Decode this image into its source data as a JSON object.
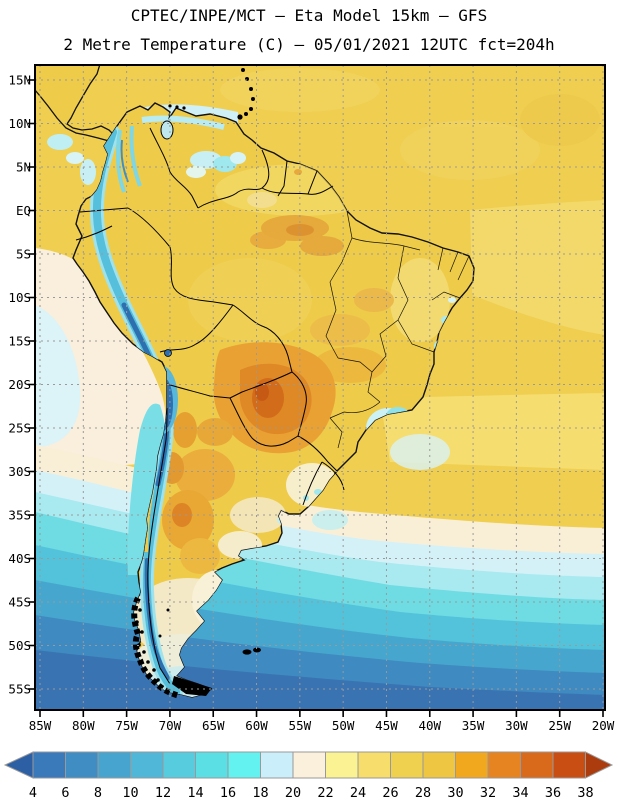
{
  "header": {
    "title_line1": "CPTEC/INPE/MCT –  Eta Model 15km – GFS",
    "title_line2": "2 Metre Temperature (C) – 05/01/2021 12UTC fct=204h"
  },
  "map": {
    "lat_labels": [
      "15N",
      "10N",
      "5N",
      "EQ",
      "5S",
      "10S",
      "15S",
      "20S",
      "25S",
      "30S",
      "35S",
      "40S",
      "45S",
      "50S",
      "55S"
    ],
    "lon_labels": [
      "85W",
      "80W",
      "75W",
      "70W",
      "65W",
      "60W",
      "55W",
      "50W",
      "45W",
      "40W",
      "35W",
      "30W",
      "25W",
      "20W"
    ],
    "grid_style": "dashed gray",
    "visible_features": [
      {
        "feature": "Tropical South America and adjacent oceans",
        "approx_temp_c": "26-30"
      },
      {
        "feature": "Andes cordillera cold ribbon (Colombia to Tierra del Fuego)",
        "approx_temp_c": "4-14"
      },
      {
        "feature": "Hot core over Paraguay / N Argentina / SW Brazil",
        "approx_temp_c": "32-36"
      },
      {
        "feature": "Cool coastal Pacific off Peru",
        "approx_temp_c": "18-22"
      },
      {
        "feature": "Cold banded Southern Ocean toward 55S",
        "approx_temp_c": "4-10"
      },
      {
        "feature": "Cool cloudy patches SE Brazil coast / Venezuela coast",
        "approx_temp_c": "16-20"
      }
    ]
  },
  "colorbar": {
    "tick_labels": [
      "4",
      "6",
      "8",
      "10",
      "12",
      "14",
      "16",
      "18",
      "20",
      "22",
      "24",
      "26",
      "28",
      "30",
      "32",
      "34",
      "36",
      "38"
    ],
    "segment_colors": [
      "#3A79BA",
      "#3F8DC3",
      "#47A4CF",
      "#50B7D8",
      "#57CCDF",
      "#5BDFE4",
      "#63F2F0",
      "#CBEFFA",
      "#FAF0DB",
      "#FBF293",
      "#F6DD6C",
      "#F0D04F",
      "#EFC642",
      "#F2A81E",
      "#E68421",
      "#D96A1B",
      "#C94E14"
    ],
    "left_arrow_color": "#2D5FA5",
    "right_arrow_color": "#AC3B0E"
  },
  "chart_data": {
    "type": "heatmap",
    "variable": "2 metre temperature (C)",
    "model": "Eta Model 15km (GFS initial condition)",
    "valid": "05/01/2021 12UTC fct=204h",
    "lat_range": [
      "17N",
      "57S"
    ],
    "lon_range": [
      "86W",
      "20W"
    ],
    "scale_values": [
      4,
      6,
      8,
      10,
      12,
      14,
      16,
      18,
      20,
      22,
      24,
      26,
      28,
      30,
      32,
      34,
      36,
      38
    ],
    "scale_colors": [
      "#2D5FA5",
      "#3A79BA",
      "#3F8DC3",
      "#47A4CF",
      "#50B7D8",
      "#57CCDF",
      "#5BDFE4",
      "#63F2F0",
      "#CBEFFA",
      "#FAF0DB",
      "#FBF293",
      "#F6DD6C",
      "#F0D04F",
      "#EFC642",
      "#F2A81E",
      "#E68421",
      "#D96A1B",
      "#C94E14",
      "#AC3B0E"
    ]
  }
}
